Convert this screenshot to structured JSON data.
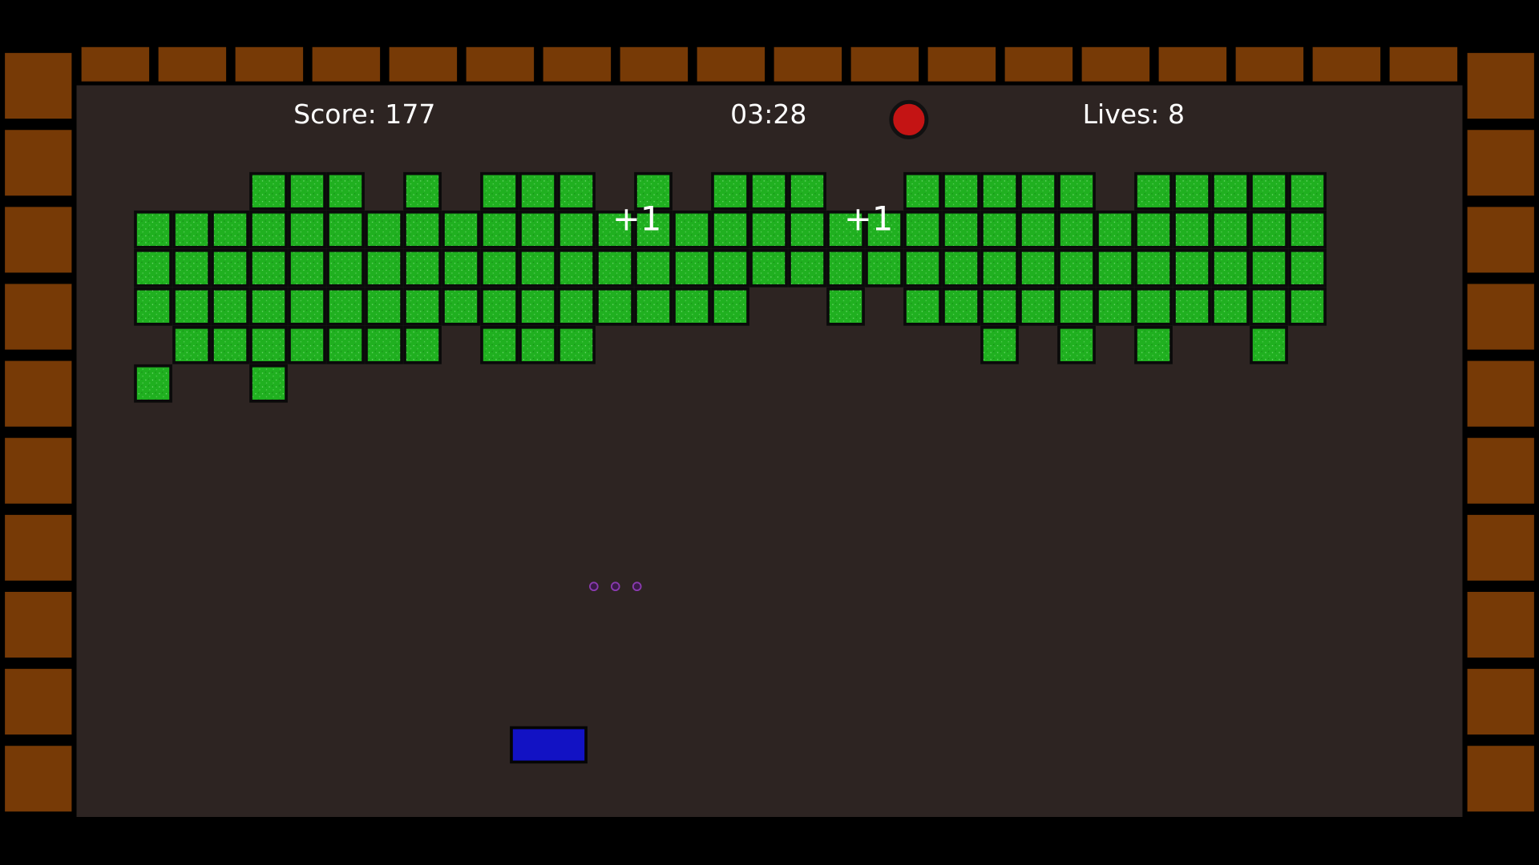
{
  "hud": {
    "score": "Score: 177",
    "timer": "03:28",
    "lives": "Lives: 8"
  },
  "popups": [
    "+1",
    "+1"
  ]
}
